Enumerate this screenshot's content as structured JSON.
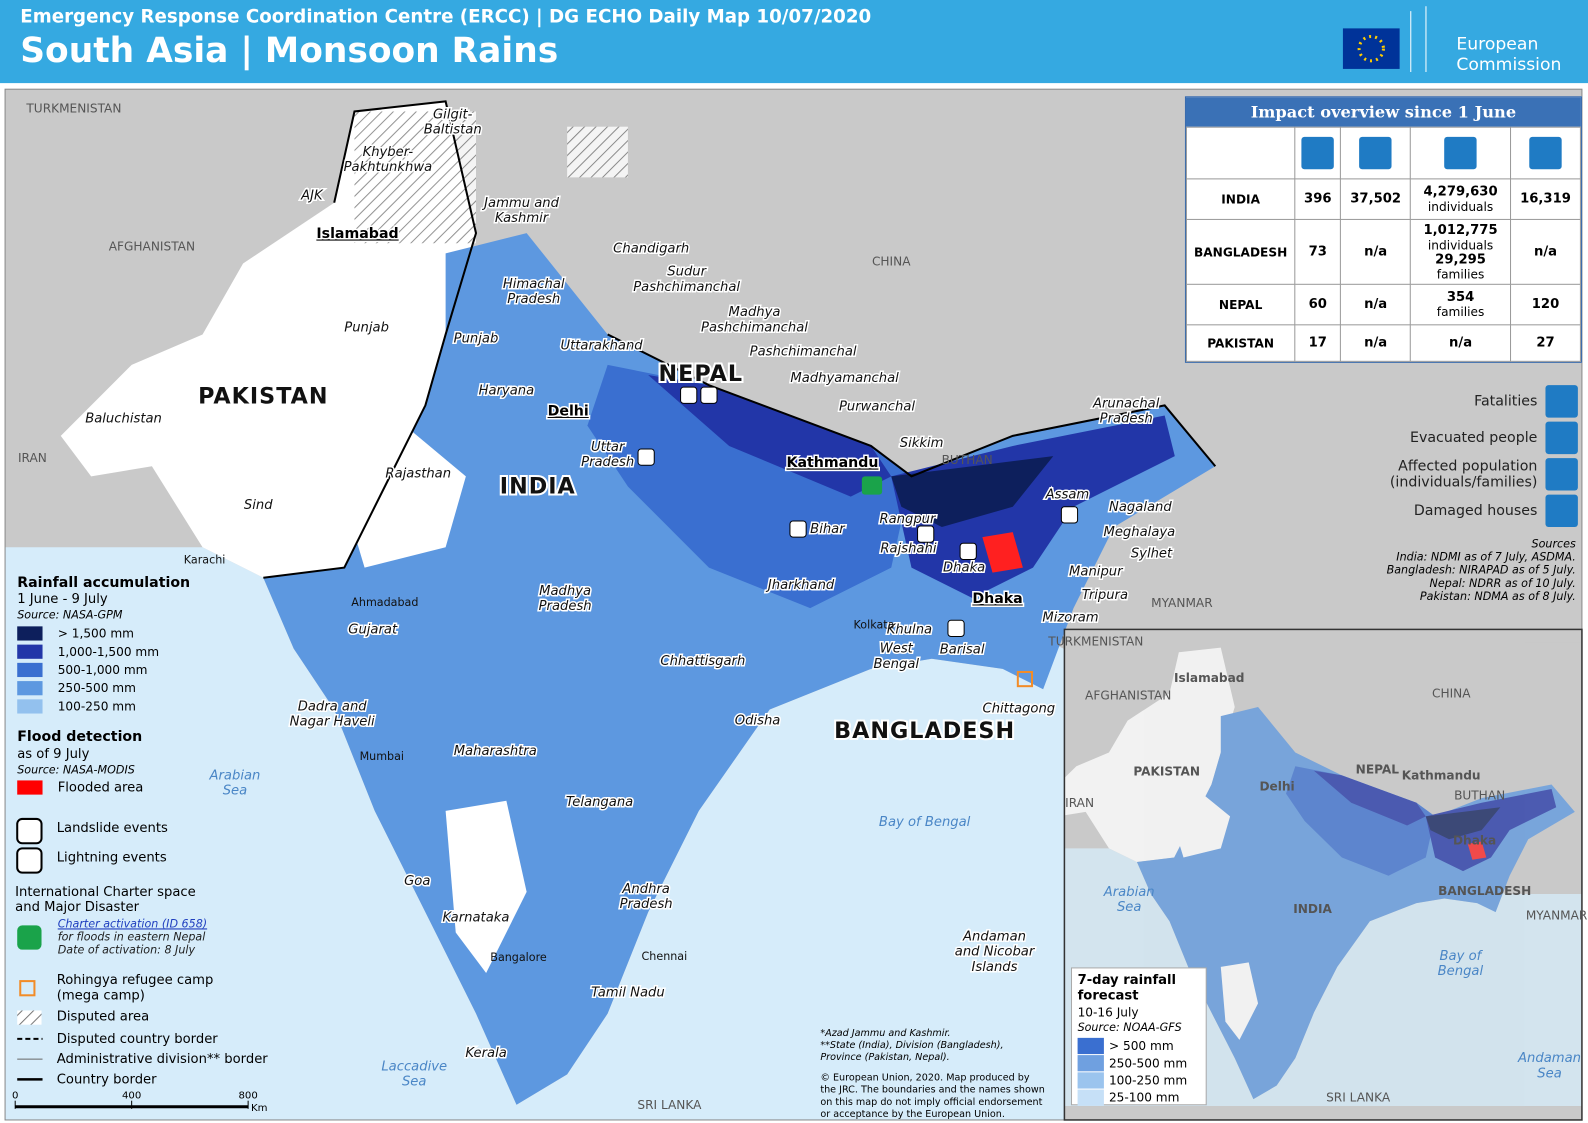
{
  "header": {
    "subtitle": "Emergency Response Coordination Centre (ERCC) | DG ECHO Daily Map 10/07/2020",
    "title": "South Asia | Monsoon Rains",
    "logo": [
      "European",
      "Commission"
    ]
  },
  "impact": {
    "title": "Impact overview since 1 June",
    "rows": [
      {
        "country": "INDIA",
        "fatalities": "396",
        "evacuated": "37,502",
        "affected": [
          "4,279,630",
          "individuals"
        ],
        "houses": "16,319"
      },
      {
        "country": "BANGLADESH",
        "fatalities": "73",
        "evacuated": "n/a",
        "affected": [
          "1,012,775",
          "individuals",
          "29,295",
          "families"
        ],
        "houses": "n/a"
      },
      {
        "country": "NEPAL",
        "fatalities": "60",
        "evacuated": "n/a",
        "affected": [
          "354",
          "families"
        ],
        "houses": "120"
      },
      {
        "country": "PAKISTAN",
        "fatalities": "17",
        "evacuated": "n/a",
        "affected": [
          "n/a"
        ],
        "houses": "27"
      }
    ]
  },
  "indicators": [
    "Fatalities",
    "Evacuated people",
    "Affected population\n(individuals/families)",
    "Damaged houses"
  ],
  "sources": {
    "title": "Sources",
    "lines": [
      "India: NDMI as of 7 July, ASDMA.",
      "Bangladesh: NIRAPAD as of 5 July.",
      "Nepal: NDRR as of 10 July.",
      "Pakistan: NDMA as of 8 July."
    ]
  },
  "rainfall": {
    "title": "Rainfall accumulation",
    "period": "1 June - 9 July",
    "source": "Source: NASA-GPM",
    "classes": [
      {
        "label": "> 1,500 mm",
        "color": "#0d1f5c"
      },
      {
        "label": "1,000-1,500 mm",
        "color": "#2236a8"
      },
      {
        "label": "500-1,000 mm",
        "color": "#3a6fd0"
      },
      {
        "label": "250-500 mm",
        "color": "#5d98e0"
      },
      {
        "label": "100-250 mm",
        "color": "#93c1ee"
      }
    ]
  },
  "flood": {
    "title": "Flood detection",
    "asof": "as of 9 July",
    "source": "Source: NASA-MODIS",
    "item": "Flooded area",
    "color": "#ff0000"
  },
  "symbols": {
    "landslide": "Landslide events",
    "lightning": "Lightning events",
    "charter_title": "International Charter space\nand Major Disaster",
    "charter": [
      "Charter activation (ID 658)",
      "for floods in eastern Nepal",
      "Date of activation: 8 July"
    ],
    "camp": "Rohingya refugee camp\n(mega camp)",
    "disputed": "Disputed area",
    "disputed_border": "Disputed country border",
    "admin_border": "Administrative division** border",
    "country_border": "Country border"
  },
  "notes": [
    "*Azad Jammu and Kashmir.",
    "**State (India), Division (Bangladesh),",
    "Province (Pakistan, Nepal).",
    "© European Union, 2020. Map produced by",
    "the JRC. The boundaries and the names shown",
    "on this map do not imply official endorsement",
    "or acceptance by the European Union."
  ],
  "scale": {
    "ticks": [
      0,
      400,
      800
    ],
    "unit": "Km"
  },
  "map": {
    "countries": [
      "TURKMENISTAN",
      "AFGHANISTAN",
      "CHINA",
      "IRAN",
      "PAKISTAN",
      "INDIA",
      "NEPAL",
      "BUTHAN",
      "BANGLADESH",
      "MYANMAR",
      "SRI LANKA"
    ],
    "capitals": [
      "Islamabad",
      "Delhi",
      "Kathmandu",
      "Dhaka"
    ],
    "regions": [
      "Gilgit-\nBaltistan",
      "Khyber-\nPakhtunkhwa",
      "AJK",
      "Jammu and\nKashmir",
      "Chandigarh",
      "Sudur\nPashchimanchal",
      "Himachal\nPradesh",
      "Madhya\nPashchimanchal",
      "Punjab",
      "Punjab",
      "Pashchimanchal",
      "Uttarakhand",
      "Madhyamanchal",
      "Haryana",
      "Purwanchal",
      "Baluchistan",
      "Arunachal\nPradesh",
      "Sikkim",
      "Uttar\nPradesh",
      "Rajasthan",
      "Assam",
      "Nagaland",
      "Sind",
      "Bihar",
      "Rangpur",
      "Meghalaya",
      "Rajshahi",
      "Sylhet",
      "Dhaka",
      "Manipur",
      "Jharkhand",
      "Madhya\nPradesh",
      "Tripura",
      "Khulna",
      "Gujarat",
      "Mizoram",
      "West\nBengal",
      "Barisal",
      "Chhattisgarh",
      "Chittagong",
      "Dadra and\nNagar Haveli",
      "Odisha",
      "Maharashtra",
      "Telangana",
      "Goa",
      "Andhra\nPradesh",
      "Karnataka",
      "Andaman\nand Nicobar\nIslands",
      "Tamil Nadu",
      "Kerala"
    ],
    "cities": [
      "Karachi",
      "Ahmadabad",
      "Mumbai",
      "Kolkata",
      "Bangalore",
      "Chennai"
    ],
    "seas": [
      "Arabian\nSea",
      "Bay of Bengal",
      "Laccadive\nSea"
    ]
  },
  "inset": {
    "title": "7-day rainfall\nforecast",
    "period": "10-16 July",
    "source": "Source: NOAA-GFS",
    "classes": [
      {
        "label": "> 500 mm",
        "color": "#3a6fd0"
      },
      {
        "label": "250-500 mm",
        "color": "#6fa0e0"
      },
      {
        "label": "100-250 mm",
        "color": "#9bc4ee"
      },
      {
        "label": "25-100 mm",
        "color": "#c6e0f7"
      }
    ],
    "labels": [
      "TURKMENISTAN",
      "Islamabad",
      "AFGHANISTAN",
      "CHINA",
      "PAKISTAN",
      "Delhi",
      "NEPAL",
      "Kathmandu",
      "BUTHAN",
      "IRAN",
      "Dhaka",
      "BANGLADESH",
      "INDIA",
      "MYANMAR",
      "Arabian\nSea",
      "Bay of\nBengal",
      "SRI LANKA",
      "Andaman\nSea"
    ]
  }
}
